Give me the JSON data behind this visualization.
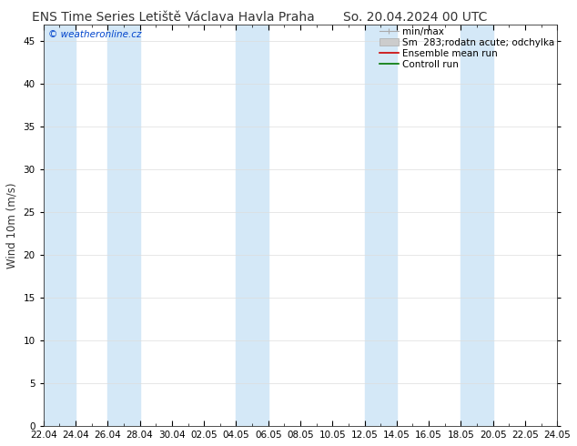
{
  "title_left": "ENS Time Series Letiště Václava Havla Praha",
  "title_right": "So. 20.04.2024 00 UTC",
  "ylabel": "Wind 10m (m/s)",
  "ylim": [
    0,
    47
  ],
  "yticks": [
    0,
    5,
    10,
    15,
    20,
    25,
    30,
    35,
    40,
    45
  ],
  "bg_color": "#ffffff",
  "plot_bg_color": "#ffffff",
  "band_color": "#d4e8f7",
  "watermark_text": "© weatheronline.cz",
  "watermark_color": "#0044cc",
  "x_tick_labels": [
    "22.04",
    "24.04",
    "26.04",
    "28.04",
    "30.04",
    "02.05",
    "04.05",
    "06.05",
    "08.05",
    "10.05",
    "12.05",
    "14.05",
    "16.05",
    "18.05",
    "20.05",
    "22.05",
    "24.05"
  ],
  "num_days": 32,
  "band_starts": [
    0,
    4,
    12,
    20,
    26
  ],
  "band_widths": [
    2,
    2,
    2,
    2,
    2
  ],
  "title_fontsize": 10,
  "axis_fontsize": 7.5,
  "ylabel_fontsize": 8.5,
  "legend_fontsize": 7.5
}
